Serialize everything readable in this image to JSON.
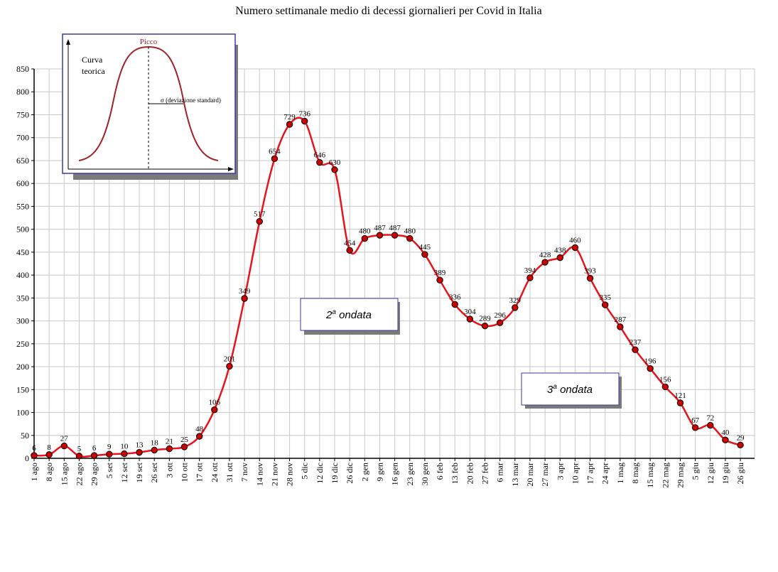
{
  "chart_data": {
    "type": "line",
    "title": "Numero settimanale medio di decessi giornalieri per Covid in Italia",
    "categories": [
      "1 ago",
      "8 ago",
      "15 ago",
      "22 ago",
      "29 ago",
      "5 set",
      "12 set",
      "19 set",
      "26 set",
      "3 ott",
      "10 ott",
      "17 ott",
      "24 ott",
      "31 ott",
      "7 nov",
      "14 nov",
      "21 nov",
      "28 nov",
      "5 dic",
      "12 dic",
      "19 dic",
      "26 dic",
      "2 gen",
      "9 gen",
      "16 gen",
      "23 gen",
      "30 gen",
      "6 feb",
      "13 feb",
      "20 feb",
      "27 feb",
      "6 mar",
      "13 mar",
      "20 mar",
      "27 mar",
      "3 apr",
      "10 apr",
      "17 apr",
      "24 apr",
      "1 mag",
      "8 mag",
      "15 mag",
      "22 mag",
      "29 mag",
      "5 giu",
      "12 giu",
      "19 giu",
      "26 giu"
    ],
    "values": [
      6,
      8,
      27,
      5,
      6,
      9,
      10,
      13,
      18,
      21,
      25,
      48,
      106,
      201,
      349,
      517,
      654,
      729,
      736,
      646,
      630,
      454,
      480,
      487,
      487,
      480,
      445,
      389,
      336,
      304,
      289,
      296,
      329,
      394,
      428,
      438,
      460,
      393,
      335,
      287,
      237,
      196,
      156,
      121,
      67,
      72,
      40,
      29
    ],
    "ylim": [
      0,
      850
    ],
    "ytick_step": 50,
    "grid": true,
    "series_color": "#e8131b",
    "marker_color": "#cc0000",
    "annotations": [
      "2ª ondata",
      "3ª ondata"
    ]
  },
  "inset": {
    "curve_label_line1": "Curva",
    "curve_label_line2": "teorica",
    "peak_label": "Picco",
    "sigma_label": "σ  (deviazione standard)"
  },
  "annotations": {
    "wave2_num": "2",
    "wave2_sup": "a",
    "wave2_word": " ondata",
    "wave3_num": "3",
    "wave3_sup": "a",
    "wave3_word": " ondata"
  }
}
